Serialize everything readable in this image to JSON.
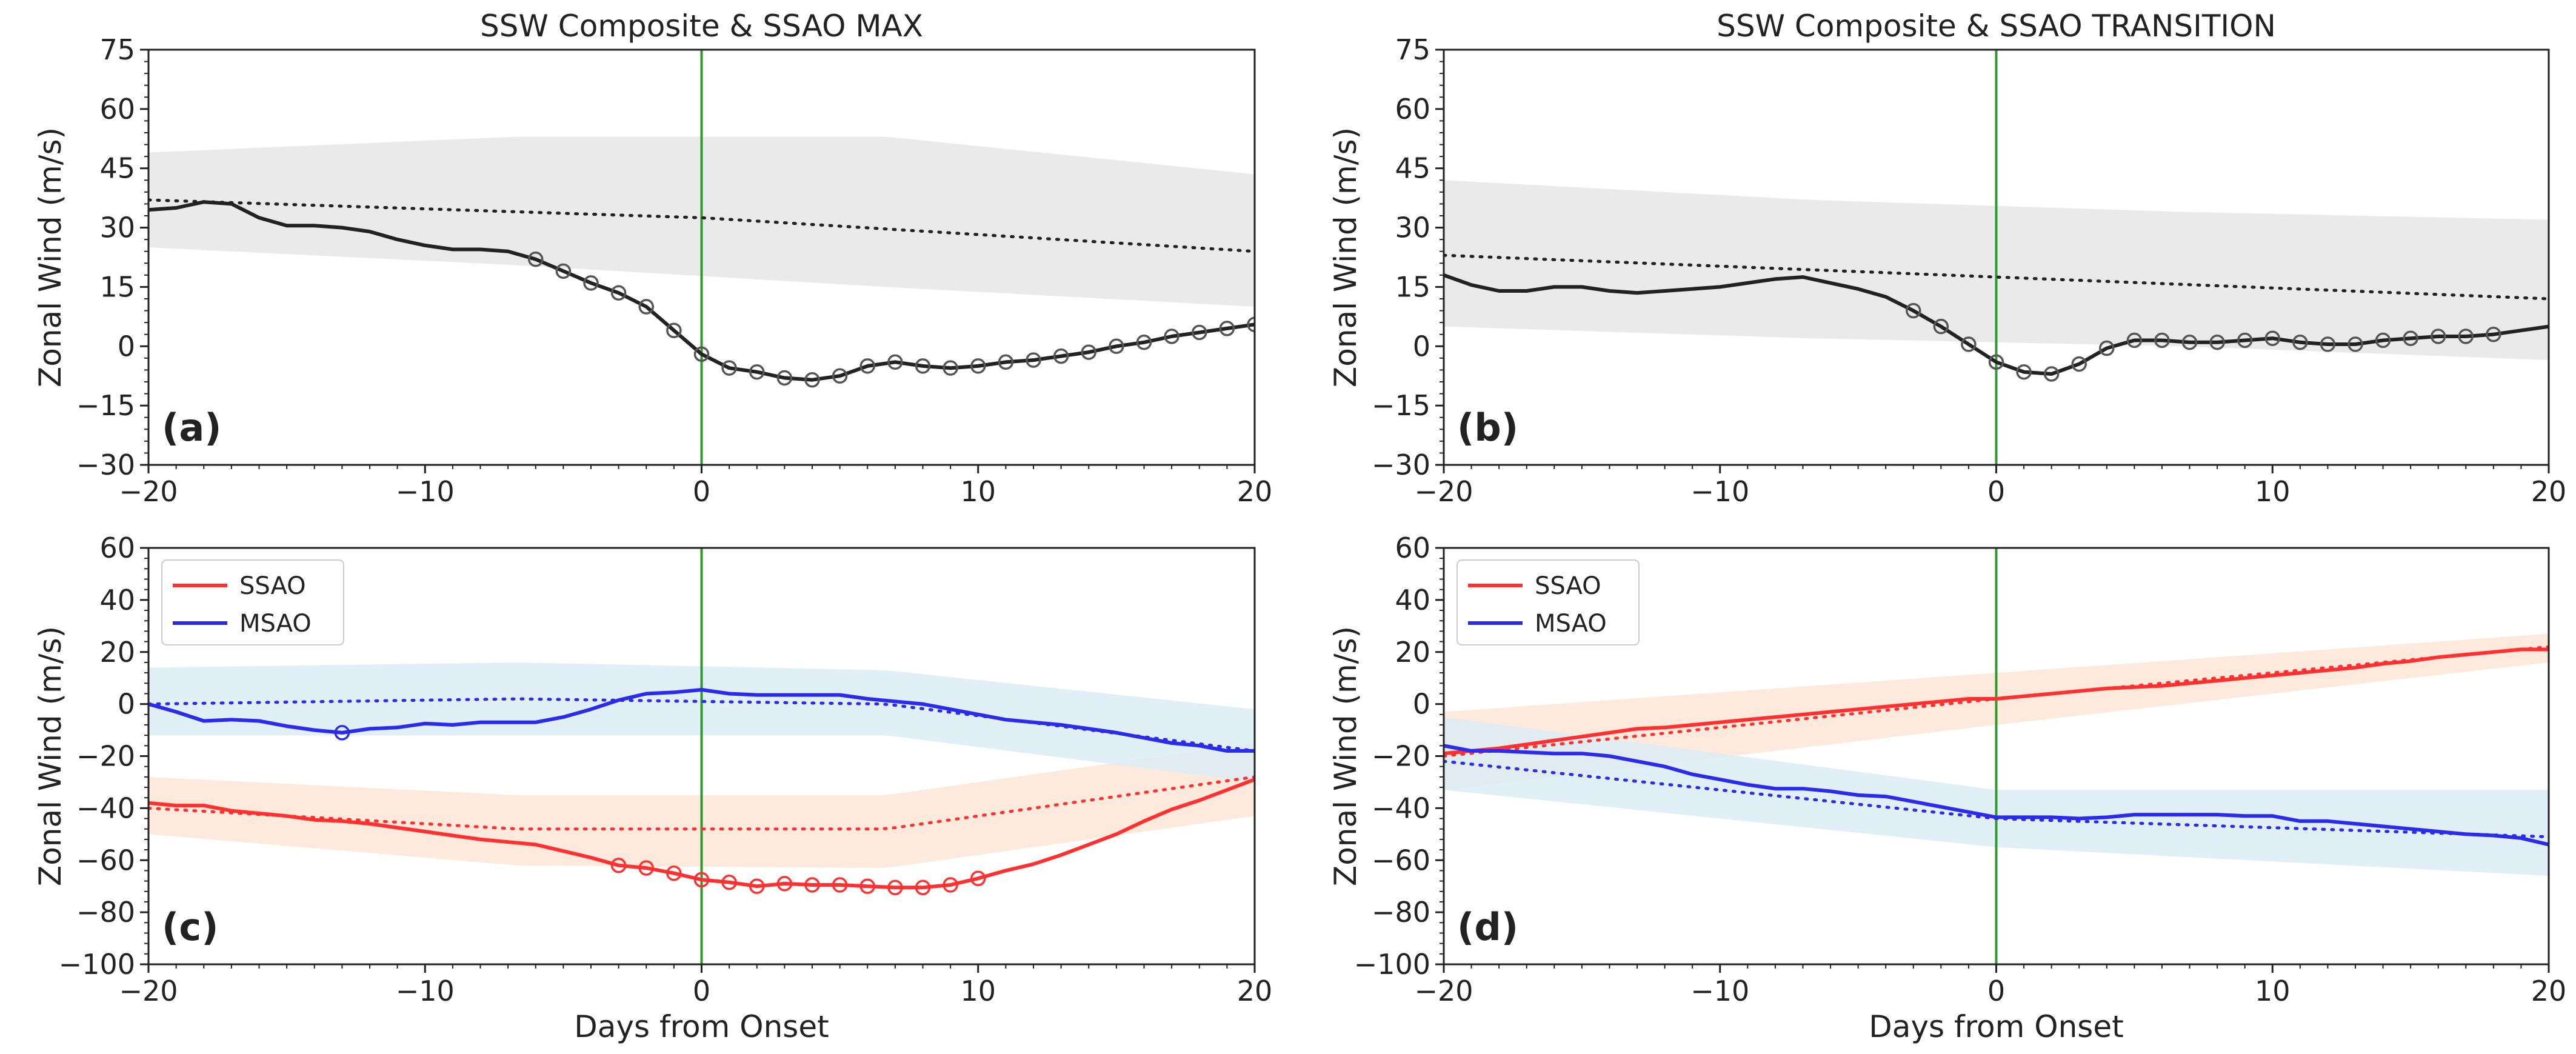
{
  "chart_data": [
    {
      "id": "a",
      "type": "line",
      "title": "SSW Composite & SSAO MAX",
      "panel_label": "(a)",
      "xlabel": "",
      "ylabel": "Zonal Wind (m/s)",
      "xlim": [
        -20,
        20
      ],
      "ylim": [
        -30,
        75
      ],
      "xticks": [
        "−20",
        "−10",
        "0",
        "10",
        "20"
      ],
      "xtick_values": [
        -20,
        -10,
        0,
        10,
        20
      ],
      "yticks": [
        "−30",
        "−15",
        "0",
        "15",
        "30",
        "45",
        "60",
        "75"
      ],
      "ytick_values": [
        -30,
        -15,
        0,
        15,
        30,
        45,
        60,
        75
      ],
      "vline_x": 0,
      "series": [
        {
          "name": "composite",
          "color": "#222222",
          "band_color": "#e6e6e6",
          "x": [
            -20,
            -19,
            -18,
            -17,
            -16,
            -15,
            -14,
            -13,
            -12,
            -11,
            -10,
            -9,
            -8,
            -7,
            -6,
            -5,
            -4,
            -3,
            -2,
            -1,
            0,
            1,
            2,
            3,
            4,
            5,
            6,
            7,
            8,
            9,
            10,
            11,
            12,
            13,
            14,
            15,
            16,
            17,
            18,
            19,
            20
          ],
          "values": [
            34.5,
            35,
            36.5,
            36,
            32.5,
            30.5,
            30.5,
            30,
            29,
            27,
            25.5,
            24.5,
            24.5,
            24,
            22,
            19,
            16,
            13.5,
            10,
            4,
            -2,
            -5.5,
            -6.5,
            -8,
            -8.5,
            -7.5,
            -5,
            -4,
            -5,
            -5.5,
            -5,
            -4,
            -3.5,
            -2.5,
            -1.5,
            0,
            1,
            2.5,
            3.5,
            4.5,
            5.5
          ],
          "markers_x": [
            -6,
            -5,
            -4,
            -3,
            -2,
            -1,
            0,
            1,
            2,
            3,
            4,
            5,
            6,
            7,
            8,
            9,
            10,
            11,
            12,
            13,
            14,
            15,
            16,
            17,
            18,
            19,
            20
          ],
          "clim": [
            37,
            32.5,
            24
          ],
          "band_upper": [
            49,
            53,
            53,
            43.5
          ],
          "band_lower": [
            25,
            20.5,
            15,
            10
          ]
        }
      ]
    },
    {
      "id": "b",
      "type": "line",
      "title": "SSW Composite & SSAO TRANSITION",
      "panel_label": "(b)",
      "xlabel": "",
      "ylabel": "Zonal Wind (m/s)",
      "xlim": [
        -20,
        20
      ],
      "ylim": [
        -30,
        75
      ],
      "xticks": [
        "−20",
        "−10",
        "0",
        "10",
        "20"
      ],
      "xtick_values": [
        -20,
        -10,
        0,
        10,
        20
      ],
      "yticks": [
        "−30",
        "−15",
        "0",
        "15",
        "30",
        "45",
        "60",
        "75"
      ],
      "ytick_values": [
        -30,
        -15,
        0,
        15,
        30,
        45,
        60,
        75
      ],
      "vline_x": 0,
      "series": [
        {
          "name": "composite",
          "color": "#222222",
          "band_color": "#e6e6e6",
          "x": [
            -20,
            -19,
            -18,
            -17,
            -16,
            -15,
            -14,
            -13,
            -12,
            -11,
            -10,
            -9,
            -8,
            -7,
            -6,
            -5,
            -4,
            -3,
            -2,
            -1,
            0,
            1,
            2,
            3,
            4,
            5,
            6,
            7,
            8,
            9,
            10,
            11,
            12,
            13,
            14,
            15,
            16,
            17,
            18,
            19,
            20
          ],
          "values": [
            18,
            15.5,
            14,
            14,
            15,
            15,
            14,
            13.5,
            14,
            14.5,
            15,
            16,
            17,
            17.5,
            16,
            14.5,
            12.5,
            9,
            5,
            0.5,
            -4,
            -6.5,
            -7,
            -4.5,
            -0.5,
            1.5,
            1.5,
            1,
            1,
            1.5,
            2,
            1,
            0.5,
            0.5,
            1.5,
            2,
            2.5,
            2.5,
            3,
            4,
            5
          ],
          "markers_x": [
            -3,
            -2,
            -1,
            0,
            1,
            2,
            3,
            4,
            5,
            6,
            7,
            8,
            9,
            10,
            11,
            12,
            13,
            14,
            15,
            16,
            17,
            18
          ],
          "clim": [
            23,
            17.5,
            12
          ],
          "band_upper": [
            42,
            37,
            34,
            32
          ],
          "band_lower": [
            5,
            2,
            0,
            -3.5
          ]
        }
      ]
    },
    {
      "id": "c",
      "type": "line",
      "title": "",
      "panel_label": "(c)",
      "xlabel": "Days from Onset",
      "ylabel": "Zonal Wind (m/s)",
      "xlim": [
        -20,
        20
      ],
      "ylim": [
        -100,
        60
      ],
      "xticks": [
        "−20",
        "−10",
        "0",
        "10",
        "20"
      ],
      "xtick_values": [
        -20,
        -10,
        0,
        10,
        20
      ],
      "yticks": [
        "−100",
        "−80",
        "−60",
        "−40",
        "−20",
        "0",
        "20",
        "40",
        "60"
      ],
      "ytick_values": [
        -100,
        -80,
        -60,
        -40,
        -20,
        0,
        20,
        40,
        60
      ],
      "vline_x": 0,
      "legend": [
        "SSAO",
        "MSAO"
      ],
      "series": [
        {
          "name": "SSAO",
          "color": "#ff3030",
          "band_color": "#fde6d6",
          "x": [
            -20,
            -19,
            -18,
            -17,
            -16,
            -15,
            -14,
            -13,
            -12,
            -11,
            -10,
            -9,
            -8,
            -7,
            -6,
            -5,
            -4,
            -3,
            -2,
            -1,
            0,
            1,
            2,
            3,
            4,
            5,
            6,
            7,
            8,
            9,
            10,
            11,
            12,
            13,
            14,
            15,
            16,
            17,
            18,
            19,
            20
          ],
          "values": [
            -38,
            -39,
            -39,
            -41,
            -42,
            -43,
            -44.5,
            -45,
            -46,
            -47.5,
            -49,
            -50.5,
            -52,
            -53,
            -54,
            -56.5,
            -59,
            -62,
            -63,
            -65,
            -67.5,
            -68.5,
            -70,
            -69,
            -69.5,
            -69.5,
            -70,
            -70.5,
            -70.5,
            -69.5,
            -67,
            -64,
            -61.5,
            -58,
            -54,
            -50,
            -45,
            -40.5,
            -37,
            -33,
            -29
          ],
          "markers_x": [
            -3,
            -2,
            -1,
            0,
            1,
            2,
            3,
            4,
            5,
            6,
            7,
            8,
            9,
            10
          ],
          "clim": [
            -40,
            -48,
            -48,
            -28
          ],
          "band_upper": [
            -28,
            -35,
            -35,
            -15
          ],
          "band_lower": [
            -50,
            -62,
            -63,
            -43
          ]
        },
        {
          "name": "MSAO",
          "color": "#2b2bee",
          "band_color": "#dcecf6",
          "x": [
            -20,
            -19,
            -18,
            -17,
            -16,
            -15,
            -14,
            -13,
            -12,
            -11,
            -10,
            -9,
            -8,
            -7,
            -6,
            -5,
            -4,
            -3,
            -2,
            -1,
            0,
            1,
            2,
            3,
            4,
            5,
            6,
            7,
            8,
            9,
            10,
            11,
            12,
            13,
            14,
            15,
            16,
            17,
            18,
            19,
            20
          ],
          "values": [
            0,
            -3,
            -6.5,
            -6,
            -6.5,
            -8.5,
            -10,
            -11,
            -9.5,
            -9,
            -7.5,
            -8,
            -7,
            -7,
            -7,
            -5,
            -2,
            1.5,
            4,
            4.5,
            5.5,
            4,
            3.5,
            3.5,
            3.5,
            3.5,
            2,
            1,
            0,
            -2,
            -4,
            -6,
            -7,
            -8,
            -9.5,
            -11,
            -13,
            -15,
            -16,
            -18,
            -18
          ],
          "markers_x": [
            -13
          ],
          "clim": [
            0,
            2,
            0,
            -18
          ],
          "band_upper": [
            14,
            16,
            13,
            -2
          ],
          "band_lower": [
            -12,
            -12,
            -12,
            -30
          ]
        }
      ]
    },
    {
      "id": "d",
      "type": "line",
      "title": "",
      "panel_label": "(d)",
      "xlabel": "Days from Onset",
      "ylabel": "Zonal Wind (m/s)",
      "xlim": [
        -20,
        20
      ],
      "ylim": [
        -100,
        60
      ],
      "xticks": [
        "−20",
        "−10",
        "0",
        "10",
        "20"
      ],
      "xtick_values": [
        -20,
        -10,
        0,
        10,
        20
      ],
      "yticks": [
        "−100",
        "−80",
        "−60",
        "−40",
        "−20",
        "0",
        "20",
        "40",
        "60"
      ],
      "ytick_values": [
        -100,
        -80,
        -60,
        -40,
        -20,
        0,
        20,
        40,
        60
      ],
      "vline_x": 0,
      "legend": [
        "SSAO",
        "MSAO"
      ],
      "series": [
        {
          "name": "SSAO",
          "color": "#ff3030",
          "band_color": "#fde6d6",
          "x": [
            -20,
            -19,
            -18,
            -17,
            -16,
            -15,
            -14,
            -13,
            -12,
            -11,
            -10,
            -9,
            -8,
            -7,
            -6,
            -5,
            -4,
            -3,
            -2,
            -1,
            0,
            1,
            2,
            3,
            4,
            5,
            6,
            7,
            8,
            9,
            10,
            11,
            12,
            13,
            14,
            15,
            16,
            17,
            18,
            19,
            20
          ],
          "values": [
            -19,
            -18,
            -17,
            -15.5,
            -14,
            -12.5,
            -11,
            -9.5,
            -9,
            -8,
            -7,
            -6,
            -5,
            -4,
            -3,
            -2,
            -1,
            0,
            1,
            2,
            2,
            3,
            4,
            5,
            6,
            6.5,
            7,
            8,
            9,
            10,
            11,
            12,
            13,
            14,
            15.5,
            16.5,
            18,
            19,
            20,
            21,
            21
          ],
          "markers_x": [],
          "clim": [
            -20,
            2,
            22
          ],
          "band_upper": [
            -3,
            12,
            27
          ],
          "band_lower": [
            -33,
            -8,
            16
          ]
        },
        {
          "name": "MSAO",
          "color": "#2b2bee",
          "band_color": "#dcecf6",
          "x": [
            -20,
            -19,
            -18,
            -17,
            -16,
            -15,
            -14,
            -13,
            -12,
            -11,
            -10,
            -9,
            -8,
            -7,
            -6,
            -5,
            -4,
            -3,
            -2,
            -1,
            0,
            1,
            2,
            3,
            4,
            5,
            6,
            7,
            8,
            9,
            10,
            11,
            12,
            13,
            14,
            15,
            16,
            17,
            18,
            19,
            20
          ],
          "values": [
            -16,
            -18,
            -18,
            -18.5,
            -19,
            -19,
            -20,
            -22,
            -24,
            -27,
            -29,
            -31,
            -32.5,
            -32.5,
            -33.5,
            -35,
            -35.5,
            -37.5,
            -39.5,
            -41.5,
            -43.5,
            -43.5,
            -43.5,
            -44,
            -43.5,
            -42.5,
            -42.5,
            -42.5,
            -42.5,
            -43,
            -43,
            -45,
            -45,
            -46,
            -47,
            -48,
            -49,
            -50,
            -50.5,
            -51.5,
            -54
          ],
          "markers_x": [],
          "clim": [
            -22,
            -44,
            -51
          ],
          "band_upper": [
            -5,
            -33,
            -33
          ],
          "band_lower": [
            -33,
            -55,
            -66
          ]
        }
      ]
    }
  ]
}
